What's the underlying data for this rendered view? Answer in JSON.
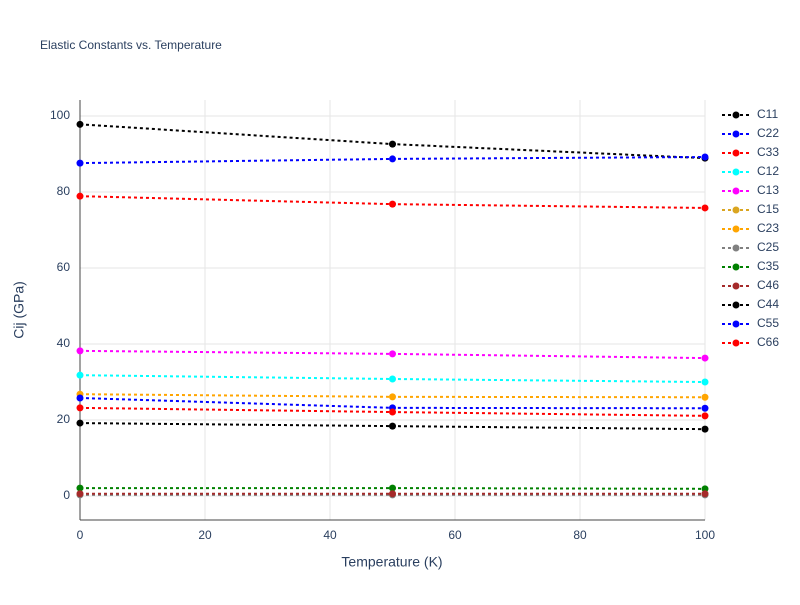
{
  "chart_data": {
    "type": "line",
    "title": "Elastic Constants vs. Temperature",
    "x_label": "Temperature (K)",
    "y_label": "Cij (GPa)",
    "x": [
      0,
      50,
      100
    ],
    "xlim": [
      0,
      100
    ],
    "xticks": [
      0,
      20,
      40,
      60,
      80,
      100
    ],
    "ylim": [
      -6.3,
      104.2
    ],
    "yticks": [
      0,
      20,
      40,
      60,
      80,
      100
    ],
    "grid": true,
    "line_style": "dotted",
    "legend": "right",
    "series": [
      {
        "name": "C11",
        "color": "#000000",
        "values": [
          97.8,
          92.6,
          88.9
        ]
      },
      {
        "name": "C22",
        "color": "#0000ff",
        "values": [
          87.6,
          88.7,
          89.2
        ]
      },
      {
        "name": "C33",
        "color": "#ff0000",
        "values": [
          78.9,
          76.8,
          75.8
        ]
      },
      {
        "name": "C12",
        "color": "#00ffff",
        "values": [
          31.8,
          30.8,
          30.0
        ]
      },
      {
        "name": "C13",
        "color": "#ff00ff",
        "values": [
          38.2,
          37.4,
          36.3
        ]
      },
      {
        "name": "C15",
        "color": "#daa520",
        "values": [
          0.4,
          0.4,
          0.4
        ]
      },
      {
        "name": "C23",
        "color": "#ffa500",
        "values": [
          26.8,
          26.1,
          26.0
        ]
      },
      {
        "name": "C25",
        "color": "#808080",
        "values": [
          0.3,
          0.3,
          0.3
        ]
      },
      {
        "name": "C35",
        "color": "#008000",
        "values": [
          2.1,
          2.1,
          1.9
        ]
      },
      {
        "name": "C46",
        "color": "#a52a2a",
        "values": [
          0.6,
          0.6,
          0.6
        ]
      },
      {
        "name": "C44",
        "color": "#000000",
        "values": [
          19.2,
          18.4,
          17.6
        ]
      },
      {
        "name": "C55",
        "color": "#0000ff",
        "values": [
          25.8,
          23.2,
          23.1
        ]
      },
      {
        "name": "C66",
        "color": "#ff0000",
        "values": [
          23.2,
          22.1,
          21.1
        ]
      }
    ]
  }
}
